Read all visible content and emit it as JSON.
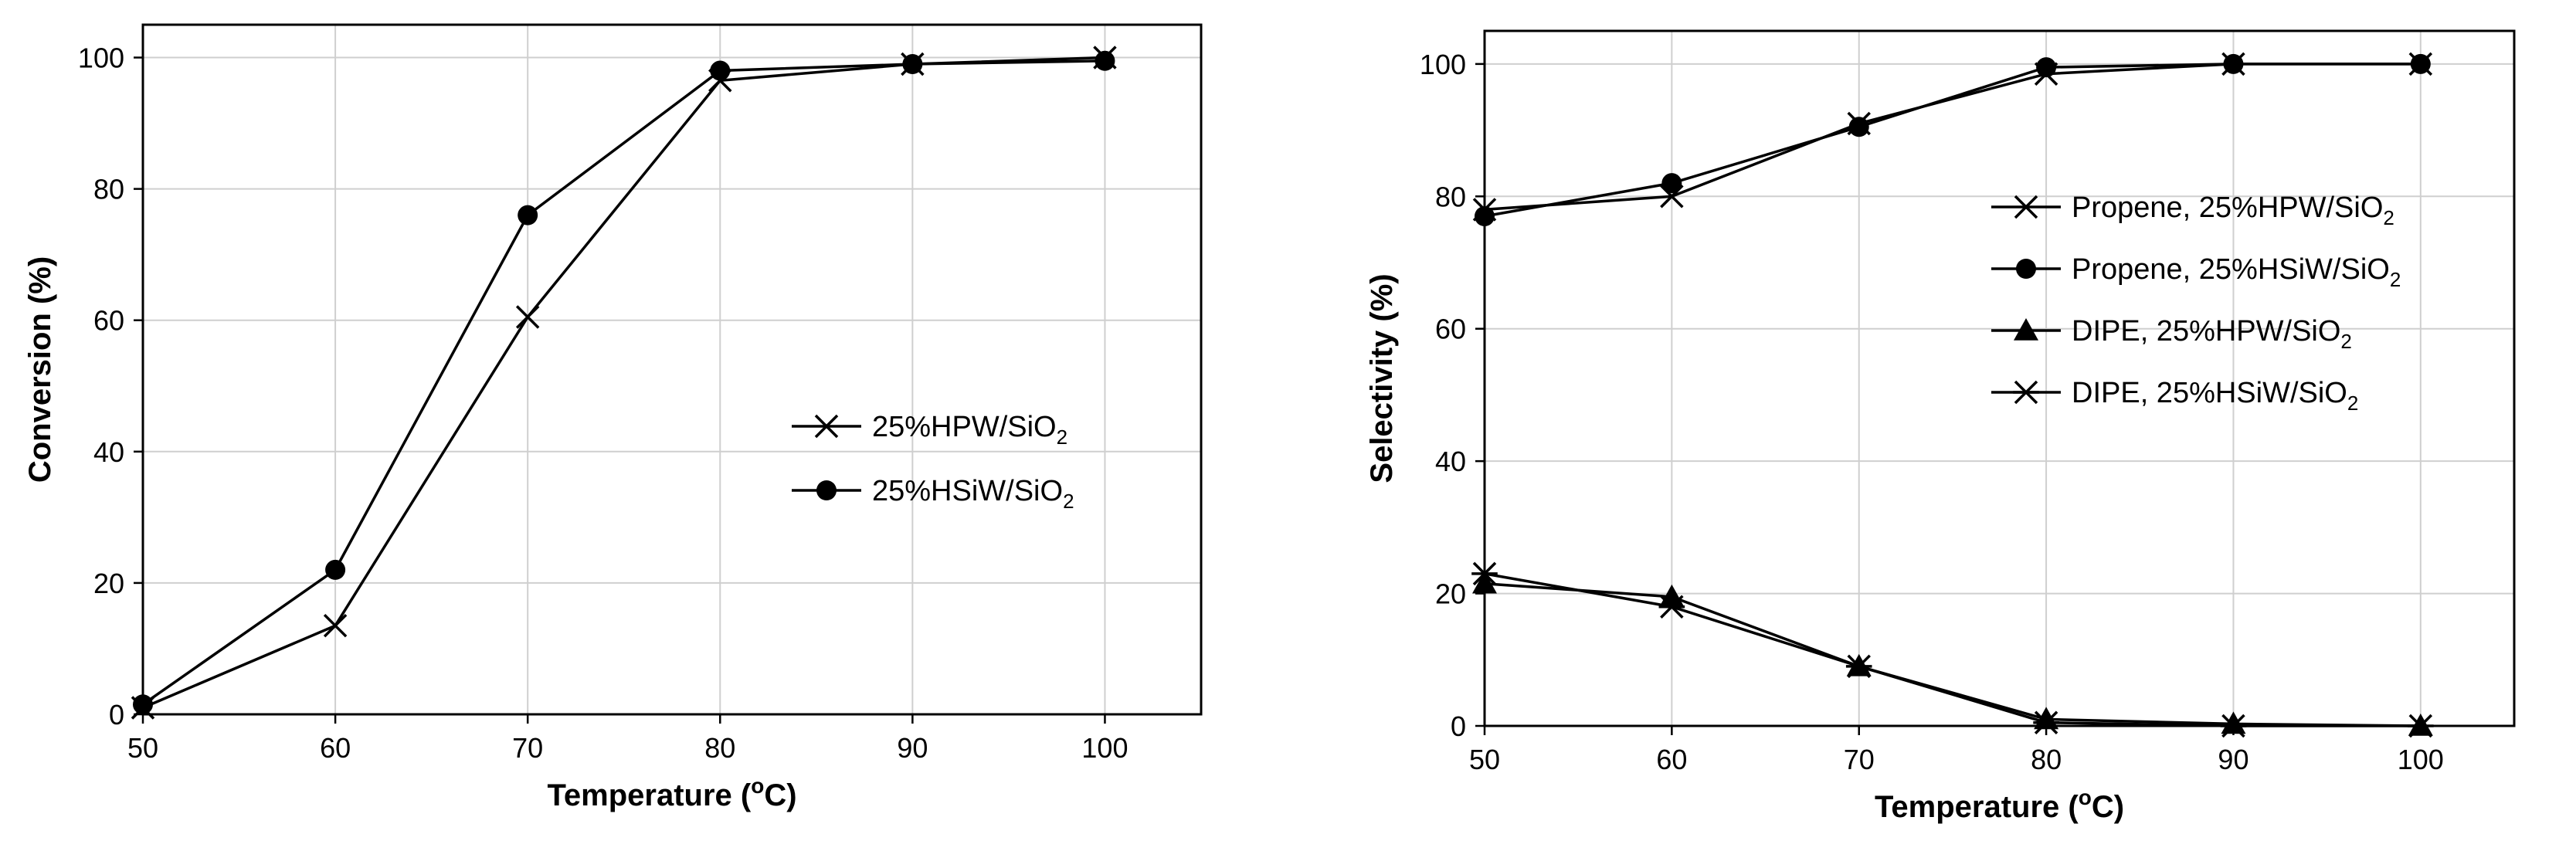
{
  "chart_data": [
    {
      "type": "line",
      "xlabel": "Temperature (",
      "xlabel_sup": "o",
      "xlabel_tail": "C)",
      "ylabel": "Conversion (%)",
      "xlim": [
        50,
        105
      ],
      "ylim": [
        0,
        105
      ],
      "x_ticks": [
        50,
        60,
        70,
        80,
        90,
        100
      ],
      "y_ticks": [
        0,
        20,
        40,
        60,
        80,
        100
      ],
      "grid": true,
      "legend_position": "center-right",
      "series": [
        {
          "name": "25%HPW/SiO",
          "name_sub": "2",
          "marker": "x",
          "x": [
            50,
            60,
            70,
            80,
            90,
            100
          ],
          "y": [
            1.0,
            13.5,
            60.5,
            96.5,
            99.0,
            100.0
          ]
        },
        {
          "name": "25%HSiW/SiO",
          "name_sub": "2",
          "marker": "circle",
          "x": [
            50,
            60,
            70,
            80,
            90,
            100
          ],
          "y": [
            1.5,
            22.0,
            76.0,
            98.0,
            99.0,
            99.5
          ]
        }
      ]
    },
    {
      "type": "line",
      "xlabel": "Temperature (",
      "xlabel_sup": "o",
      "xlabel_tail": "C)",
      "ylabel": "Selectivity (%)",
      "xlim": [
        50,
        105
      ],
      "ylim": [
        0,
        105
      ],
      "x_ticks": [
        50,
        60,
        70,
        80,
        90,
        100
      ],
      "y_ticks": [
        0,
        20,
        40,
        60,
        80,
        100
      ],
      "grid": true,
      "legend_position": "top-right",
      "series": [
        {
          "name": "Propene, 25%HPW/SiO",
          "name_sub": "2",
          "marker": "x",
          "x": [
            50,
            60,
            70,
            80,
            90,
            100
          ],
          "y": [
            78.0,
            80.0,
            91.0,
            98.5,
            100.0,
            100.0
          ]
        },
        {
          "name": "Propene, 25%HSiW/SiO",
          "name_sub": "2",
          "marker": "circle",
          "x": [
            50,
            60,
            70,
            80,
            90,
            100
          ],
          "y": [
            77.0,
            82.0,
            90.5,
            99.5,
            100.0,
            100.0
          ]
        },
        {
          "name": "DIPE, 25%HPW/SiO",
          "name_sub": "2",
          "marker": "triangle",
          "x": [
            50,
            60,
            70,
            80,
            90,
            100
          ],
          "y": [
            21.5,
            19.5,
            9.0,
            1.0,
            0.3,
            0.0
          ]
        },
        {
          "name": "DIPE, 25%HSiW/SiO",
          "name_sub": "2",
          "marker": "star",
          "x": [
            50,
            60,
            70,
            80,
            90,
            100
          ],
          "y": [
            23.0,
            18.0,
            9.0,
            0.5,
            0.0,
            0.0
          ]
        }
      ]
    }
  ]
}
